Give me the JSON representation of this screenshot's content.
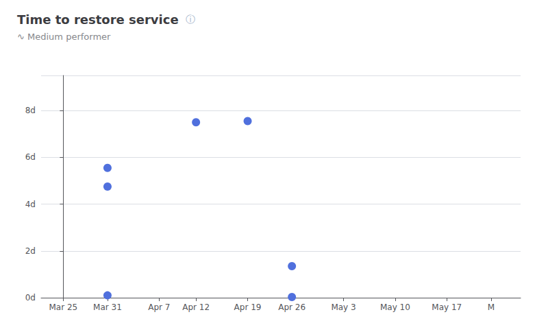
{
  "chart_data": {
    "type": "scatter",
    "title": "Time to restore service",
    "subtitle": "∿ Medium performer",
    "annotations": [
      "ⓘ"
    ],
    "x": [
      6,
      6,
      6,
      18,
      25,
      31,
      31
    ],
    "values": [
      5.55,
      4.75,
      0.1,
      7.5,
      7.55,
      1.35,
      0.03
    ],
    "xlim": [
      -3,
      62
    ],
    "xticks": [
      {
        "value": 0,
        "label": "Mar 25"
      },
      {
        "value": 6,
        "label": "Mar 31"
      },
      {
        "value": 13,
        "label": "Apr 7"
      },
      {
        "value": 18,
        "label": "Apr 12"
      },
      {
        "value": 25,
        "label": "Apr 19"
      },
      {
        "value": 31,
        "label": "Apr 26"
      },
      {
        "value": 38,
        "label": "May 3"
      },
      {
        "value": 45,
        "label": "May 10"
      },
      {
        "value": 52,
        "label": "May 17"
      },
      {
        "value": 58,
        "label": "M"
      }
    ],
    "ylim": [
      0,
      9.5
    ],
    "yticks": [
      {
        "value": 0,
        "label": "0d"
      },
      {
        "value": 2,
        "label": "2d"
      },
      {
        "value": 4,
        "label": "4d"
      },
      {
        "value": 6,
        "label": "6d"
      },
      {
        "value": 8,
        "label": "8d"
      }
    ],
    "grid": true
  }
}
